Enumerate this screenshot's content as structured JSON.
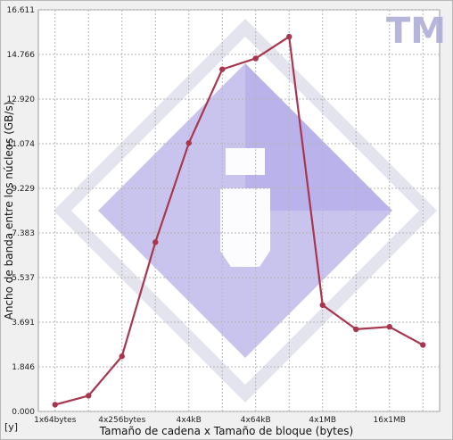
{
  "chart_data": {
    "type": "line",
    "categories": [
      "1x64bytes",
      "",
      "4x256bytes",
      "",
      "4x4kB",
      "",
      "4x64kB",
      "",
      "4x1MB",
      "",
      "16x1MB",
      ""
    ],
    "series": [
      {
        "name": "",
        "color": "#a8364f",
        "values": [
          0.28,
          0.65,
          2.28,
          7.0,
          11.1,
          14.15,
          14.6,
          15.5,
          4.4,
          3.4,
          3.5,
          2.75
        ]
      }
    ],
    "xlabel": "Tamaño de cadena x Tamaño de bloque (bytes)",
    "ylabel": "Ancho de banda entre los núcleos (GB/s)",
    "yticks": [
      "0.000",
      "1.846",
      "3.691",
      "5.537",
      "7.383",
      "9.229",
      "11.074",
      "12.920",
      "14.766",
      "16.611"
    ],
    "ylim": [
      0,
      16.611
    ],
    "grid": true,
    "corner_label": "[y]",
    "watermark": "TM"
  }
}
